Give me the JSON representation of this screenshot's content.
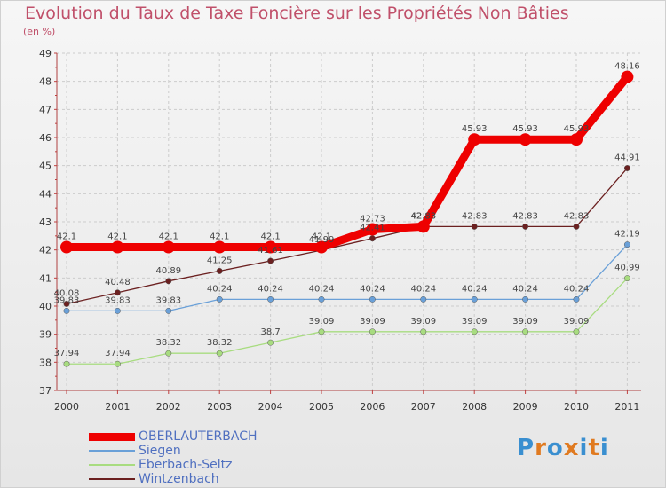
{
  "header": {
    "title": "Evolution du Taux de Taxe Foncière sur les Propriétés Non Bâties",
    "unit": "(en %)"
  },
  "logo": {
    "text": "Proxiti",
    "colors": [
      "#3a8fd0",
      "#e07a20",
      "#3a8fd0",
      "#e07a20",
      "#3a8fd0",
      "#e07a20",
      "#3a8fd0"
    ]
  },
  "chart_data": {
    "type": "line",
    "title": "Evolution du Taux de Taxe Foncière sur les Propriétés Non Bâties",
    "ylabel": "(en %)",
    "xlabel": "",
    "x": [
      "2000",
      "2001",
      "2002",
      "2003",
      "2004",
      "2005",
      "2006",
      "2007",
      "2008",
      "2009",
      "2010",
      "2011"
    ],
    "ylim": [
      37,
      49
    ],
    "yticks": [
      "37",
      "38",
      "39",
      "40",
      "41",
      "42",
      "43",
      "44",
      "45",
      "46",
      "47",
      "48",
      "49"
    ],
    "grid": true,
    "legend_position": "bottom-left",
    "series": [
      {
        "name": "OBERLAUTERBACH",
        "color": "#ee0000",
        "values": [
          42.1,
          42.1,
          42.1,
          42.1,
          42.1,
          42.1,
          42.73,
          42.83,
          45.93,
          45.93,
          45.93,
          48.16
        ],
        "labels": [
          "42.1",
          "42.1",
          "42.1",
          "42.1",
          "42.1",
          "42.1",
          "42.73",
          "42.83",
          "45.93",
          "45.93",
          "45.93",
          "48.16"
        ]
      },
      {
        "name": "Siegen",
        "color": "#6aa0d8",
        "values": [
          39.83,
          39.83,
          39.83,
          40.24,
          40.24,
          40.24,
          40.24,
          40.24,
          40.24,
          40.24,
          40.24,
          42.19
        ],
        "labels": [
          "39.83",
          "39.83",
          "39.83",
          "40.24",
          "40.24",
          "40.24",
          "40.24",
          "40.24",
          "40.24",
          "40.24",
          "40.24",
          "42.19"
        ]
      },
      {
        "name": "Eberbach-Seltz",
        "color": "#a8dc80",
        "values": [
          37.94,
          37.94,
          38.32,
          38.32,
          38.7,
          39.09,
          39.09,
          39.09,
          39.09,
          39.09,
          39.09,
          40.99
        ],
        "labels": [
          "37.94",
          "37.94",
          "38.32",
          "38.32",
          "38.7",
          "39.09",
          "39.09",
          "39.09",
          "39.09",
          "39.09",
          "39.09",
          "40.99"
        ]
      },
      {
        "name": "Wintzenbach",
        "color": "#6b2020",
        "values": [
          40.08,
          40.48,
          40.89,
          41.25,
          41.61,
          41.99,
          42.41,
          42.83,
          42.83,
          42.83,
          42.83,
          44.91
        ],
        "labels": [
          "40.08",
          "40.48",
          "40.89",
          "41.25",
          "41.61",
          "41.99",
          "42.41",
          "42.83",
          "42.83",
          "42.83",
          "42.83",
          "44.91"
        ]
      }
    ]
  }
}
